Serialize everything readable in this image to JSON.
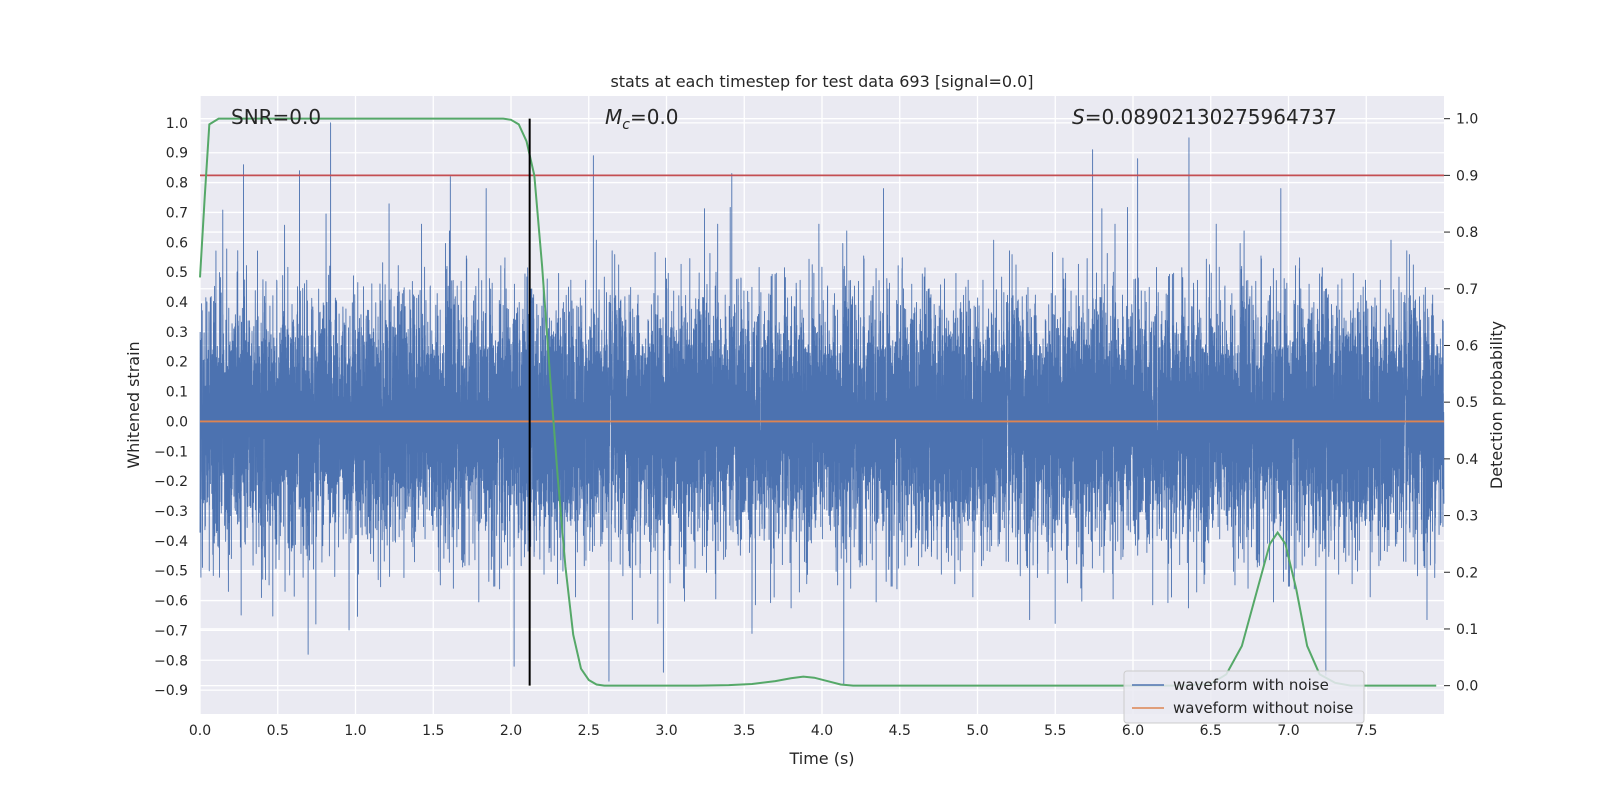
{
  "chart_data": {
    "type": "line",
    "title": "stats at each timestep for test data 693 [signal=0.0]",
    "xlabel": "Time (s)",
    "ylabel": "Whitened strain",
    "y2label": "Detection probability",
    "xlim": [
      0.0,
      8.0
    ],
    "ylim": [
      -0.98,
      1.09
    ],
    "y2lim": [
      -0.05,
      1.04
    ],
    "grid": true,
    "legend_position": "lower-right",
    "x_ticks": [
      "0.0",
      "0.5",
      "1.0",
      "1.5",
      "2.0",
      "2.5",
      "3.0",
      "3.5",
      "4.0",
      "4.5",
      "5.0",
      "5.5",
      "6.0",
      "6.5",
      "7.0",
      "7.5"
    ],
    "y_ticks": [
      "1.0",
      "0.9",
      "0.8",
      "0.7",
      "0.6",
      "0.5",
      "0.4",
      "0.3",
      "0.2",
      "0.1",
      "0.0",
      "-0.1",
      "-0.2",
      "-0.3",
      "-0.4",
      "-0.5",
      "-0.6",
      "-0.7",
      "-0.8",
      "-0.9"
    ],
    "y2_ticks": [
      "1.0",
      "0.9",
      "0.8",
      "0.7",
      "0.6",
      "0.5",
      "0.4",
      "0.3",
      "0.2",
      "0.1",
      "0.0"
    ],
    "annotations": {
      "snr": "SNR=0.0",
      "mc": "=0.0",
      "mc_symbol": "M",
      "mc_subscript": "c",
      "s": "=0.08902130275964737",
      "s_symbol": "S"
    },
    "threshold_line": {
      "axis": "y2",
      "value": 0.9,
      "color": "#c44e52"
    },
    "marker_line": {
      "x": 2.12,
      "color": "#000000"
    },
    "series": [
      {
        "name": "waveform with noise",
        "axis": "y",
        "color": "#4c72b0",
        "sample_rate": 2048,
        "noise_std": 0.2,
        "peaks": [
          {
            "t": 0.84,
            "v": 1.0
          },
          {
            "t": 0.28,
            "v": 0.86
          },
          {
            "t": 0.64,
            "v": 0.84
          },
          {
            "t": 1.61,
            "v": 0.82
          },
          {
            "t": 2.53,
            "v": 0.89
          },
          {
            "t": 3.42,
            "v": 0.83
          },
          {
            "t": 5.74,
            "v": 0.91
          },
          {
            "t": 6.03,
            "v": 0.88
          },
          {
            "t": 6.36,
            "v": 0.95
          },
          {
            "t": 4.14,
            "v": -0.88
          },
          {
            "t": 2.63,
            "v": -0.87
          },
          {
            "t": 2.98,
            "v": -0.84
          },
          {
            "t": 2.02,
            "v": -0.82
          },
          {
            "t": 7.24,
            "v": -0.85
          },
          {
            "t": 3.55,
            "v": -0.71
          }
        ]
      },
      {
        "name": "waveform without noise",
        "axis": "y",
        "color": "#dd8452",
        "value": 0.0
      },
      {
        "name": "",
        "axis": "y2",
        "color": "#55a868",
        "x": [
          0.0,
          0.03,
          0.06,
          0.12,
          0.2,
          0.5,
          1.0,
          1.5,
          1.8,
          1.95,
          2.0,
          2.05,
          2.1,
          2.15,
          2.2,
          2.25,
          2.3,
          2.35,
          2.4,
          2.45,
          2.5,
          2.55,
          2.6,
          2.65,
          2.7,
          3.0,
          3.2,
          3.4,
          3.55,
          3.7,
          3.8,
          3.88,
          3.95,
          4.05,
          4.12,
          4.2,
          4.5,
          5.0,
          5.5,
          6.0,
          6.3,
          6.5,
          6.6,
          6.7,
          6.8,
          6.88,
          6.93,
          6.98,
          7.05,
          7.12,
          7.2,
          7.3,
          7.4,
          7.6,
          7.8,
          7.95
        ],
        "values": [
          0.72,
          0.86,
          0.99,
          1.0,
          1.0,
          1.0,
          1.0,
          1.0,
          1.0,
          1.0,
          0.998,
          0.99,
          0.96,
          0.9,
          0.74,
          0.55,
          0.37,
          0.21,
          0.09,
          0.03,
          0.01,
          0.002,
          0.0,
          0.0,
          0.0,
          0.0,
          0.0,
          0.001,
          0.003,
          0.008,
          0.013,
          0.016,
          0.014,
          0.007,
          0.002,
          0.0,
          0.0,
          0.0,
          0.0,
          0.0,
          0.0,
          0.003,
          0.02,
          0.07,
          0.17,
          0.25,
          0.27,
          0.25,
          0.17,
          0.07,
          0.02,
          0.005,
          0.0,
          0.0,
          0.0,
          0.0
        ]
      }
    ]
  }
}
